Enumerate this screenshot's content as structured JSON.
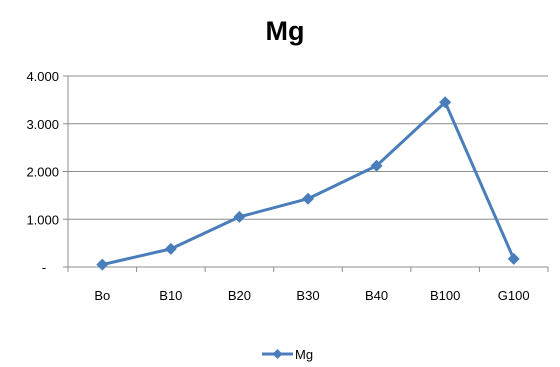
{
  "chart_data": {
    "type": "line",
    "title": "Mg",
    "xlabel": "",
    "ylabel": "",
    "categories": [
      "Bo",
      "B10",
      "B20",
      "B30",
      "B40",
      "B100",
      "G100"
    ],
    "series": [
      {
        "name": "Mg",
        "values": [
          0.05,
          0.38,
          1.05,
          1.43,
          2.12,
          3.45,
          0.17
        ],
        "color": "#4a7ebb",
        "marker": "diamond"
      }
    ],
    "ylim": [
      0,
      4
    ],
    "yticks": [
      {
        "value": 0,
        "label": "-"
      },
      {
        "value": 1,
        "label": "1.000"
      },
      {
        "value": 2,
        "label": "2.000"
      },
      {
        "value": 3,
        "label": "3.000"
      },
      {
        "value": 4,
        "label": "4.000"
      }
    ],
    "grid": true,
    "legend": "bottom",
    "colors": {
      "series": "#4a7ebb",
      "grid": "#8c8c8c",
      "axis": "#8c8c8c"
    }
  }
}
